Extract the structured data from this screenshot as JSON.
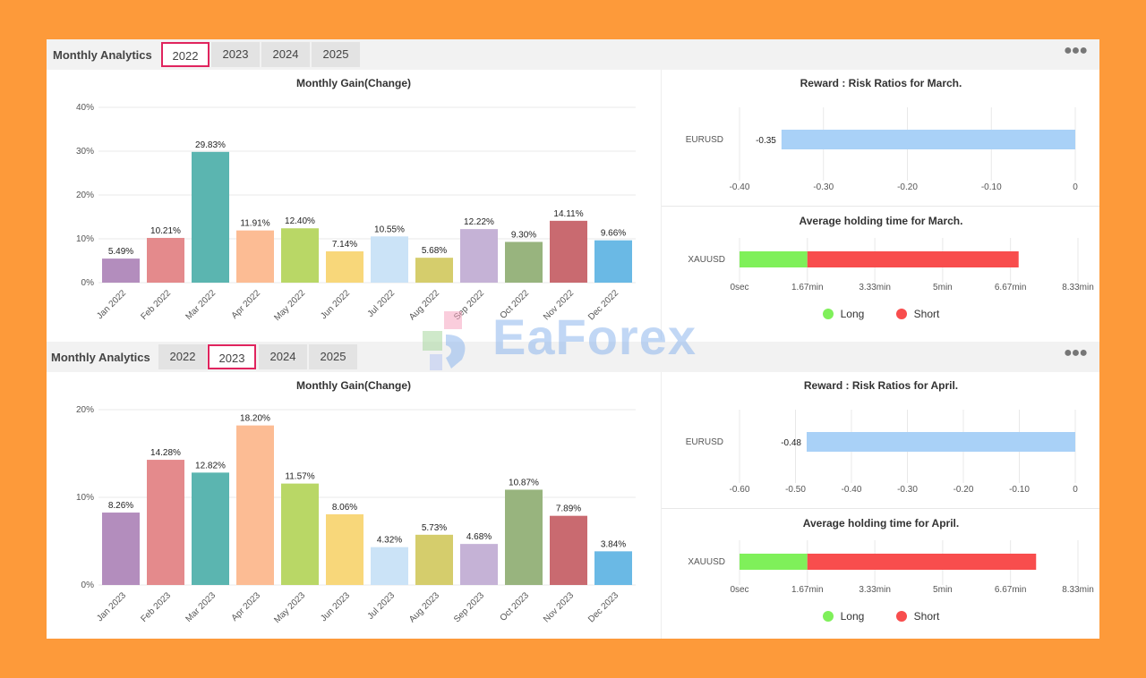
{
  "colors": {
    "active_tab_border": "#e0245e",
    "rr_bar": "#a9d1f7",
    "long": "#7ff05a",
    "short": "#f84d4d",
    "month_palette": [
      "#b38dbd",
      "#e48a8c",
      "#5bb5b0",
      "#fcbc94",
      "#b9d766",
      "#f8d77a",
      "#cbe3f7",
      "#d5cd6c",
      "#c5b2d6",
      "#98b47e",
      "#c96a70",
      "#6ab9e5"
    ]
  },
  "panels": [
    {
      "header": {
        "title": "Monthly Analytics",
        "tabs": [
          "2022",
          "2023",
          "2024",
          "2025"
        ],
        "active_tab": 0,
        "menu_icon": "more-dots-icon"
      },
      "gain_chart": {
        "type": "bar",
        "title": "Monthly Gain(Change)",
        "categories": [
          "Jan 2022",
          "Feb 2022",
          "Mar 2022",
          "Apr 2022",
          "May 2022",
          "Jun 2022",
          "Jul 2022",
          "Aug 2022",
          "Sep 2022",
          "Oct 2022",
          "Nov 2022",
          "Dec 2022"
        ],
        "values": [
          5.49,
          10.21,
          29.83,
          11.91,
          12.4,
          7.14,
          10.55,
          5.68,
          12.22,
          9.3,
          14.11,
          9.66
        ],
        "value_labels": [
          "5.49%",
          "10.21%",
          "29.83%",
          "11.91%",
          "12.40%",
          "7.14%",
          "10.55%",
          "5.68%",
          "12.22%",
          "9.30%",
          "14.11%",
          "9.66%"
        ],
        "yticks": [
          0,
          10,
          20,
          30,
          40
        ],
        "ytick_labels": [
          "0%",
          "10%",
          "20%",
          "30%",
          "40%"
        ],
        "ylim": [
          0,
          40
        ]
      },
      "rr_chart": {
        "type": "bar",
        "title": "Reward : Risk Ratios for March.",
        "categories": [
          "EURUSD"
        ],
        "values": [
          -0.35
        ],
        "value_labels": [
          "-0.35"
        ],
        "xticks": [
          -0.4,
          -0.3,
          -0.2,
          -0.1,
          0
        ],
        "xtick_labels": [
          "-0.40",
          "-0.30",
          "-0.20",
          "-0.10",
          "0"
        ],
        "xlim": [
          -0.4,
          0
        ]
      },
      "hold_chart": {
        "type": "bar",
        "title": "Average holding time for March.",
        "categories": [
          "XAUUSD"
        ],
        "series": [
          {
            "name": "Long",
            "values": [
              1.67
            ]
          },
          {
            "name": "Short",
            "values": [
              5.2
            ]
          }
        ],
        "xticks": [
          0,
          1.67,
          3.33,
          5,
          6.67,
          8.33
        ],
        "xtick_labels": [
          "0sec",
          "1.67min",
          "3.33min",
          "5min",
          "6.67min",
          "8.33min"
        ],
        "xlim": [
          0,
          8.33
        ],
        "legend": [
          "Long",
          "Short"
        ]
      }
    },
    {
      "header": {
        "title": "Monthly Analytics",
        "tabs": [
          "2022",
          "2023",
          "2024",
          "2025"
        ],
        "active_tab": 1,
        "menu_icon": "more-dots-icon"
      },
      "gain_chart": {
        "type": "bar",
        "title": "Monthly Gain(Change)",
        "categories": [
          "Jan 2023",
          "Feb 2023",
          "Mar 2023",
          "Apr 2023",
          "May 2023",
          "Jun 2023",
          "Jul 2023",
          "Aug 2023",
          "Sep 2023",
          "Oct 2023",
          "Nov 2023",
          "Dec 2023"
        ],
        "values": [
          8.26,
          14.28,
          12.82,
          18.2,
          11.57,
          8.06,
          4.32,
          5.73,
          4.68,
          10.87,
          7.89,
          3.84
        ],
        "value_labels": [
          "8.26%",
          "14.28%",
          "12.82%",
          "18.20%",
          "11.57%",
          "8.06%",
          "4.32%",
          "5.73%",
          "4.68%",
          "10.87%",
          "7.89%",
          "3.84%"
        ],
        "yticks": [
          0,
          10,
          20
        ],
        "ytick_labels": [
          "0%",
          "10%",
          "20%"
        ],
        "ylim": [
          0,
          20
        ]
      },
      "rr_chart": {
        "type": "bar",
        "title": "Reward : Risk Ratios for April.",
        "categories": [
          "EURUSD"
        ],
        "values": [
          -0.48
        ],
        "value_labels": [
          "-0.48"
        ],
        "xticks": [
          -0.6,
          -0.5,
          -0.4,
          -0.3,
          -0.2,
          -0.1,
          0
        ],
        "xtick_labels": [
          "-0.60",
          "-0.50",
          "-0.40",
          "-0.30",
          "-0.20",
          "-0.10",
          "0"
        ],
        "xlim": [
          -0.6,
          0
        ]
      },
      "hold_chart": {
        "type": "bar",
        "title": "Average holding time for April.",
        "categories": [
          "XAUUSD"
        ],
        "series": [
          {
            "name": "Long",
            "values": [
              1.67
            ]
          },
          {
            "name": "Short",
            "values": [
              5.63
            ]
          }
        ],
        "xticks": [
          0,
          1.67,
          3.33,
          5,
          6.67,
          8.33
        ],
        "xtick_labels": [
          "0sec",
          "1.67min",
          "3.33min",
          "5min",
          "6.67min",
          "8.33min"
        ],
        "xlim": [
          0,
          8.33
        ],
        "legend": [
          "Long",
          "Short"
        ]
      }
    }
  ],
  "watermark": {
    "text": "EaForex"
  }
}
